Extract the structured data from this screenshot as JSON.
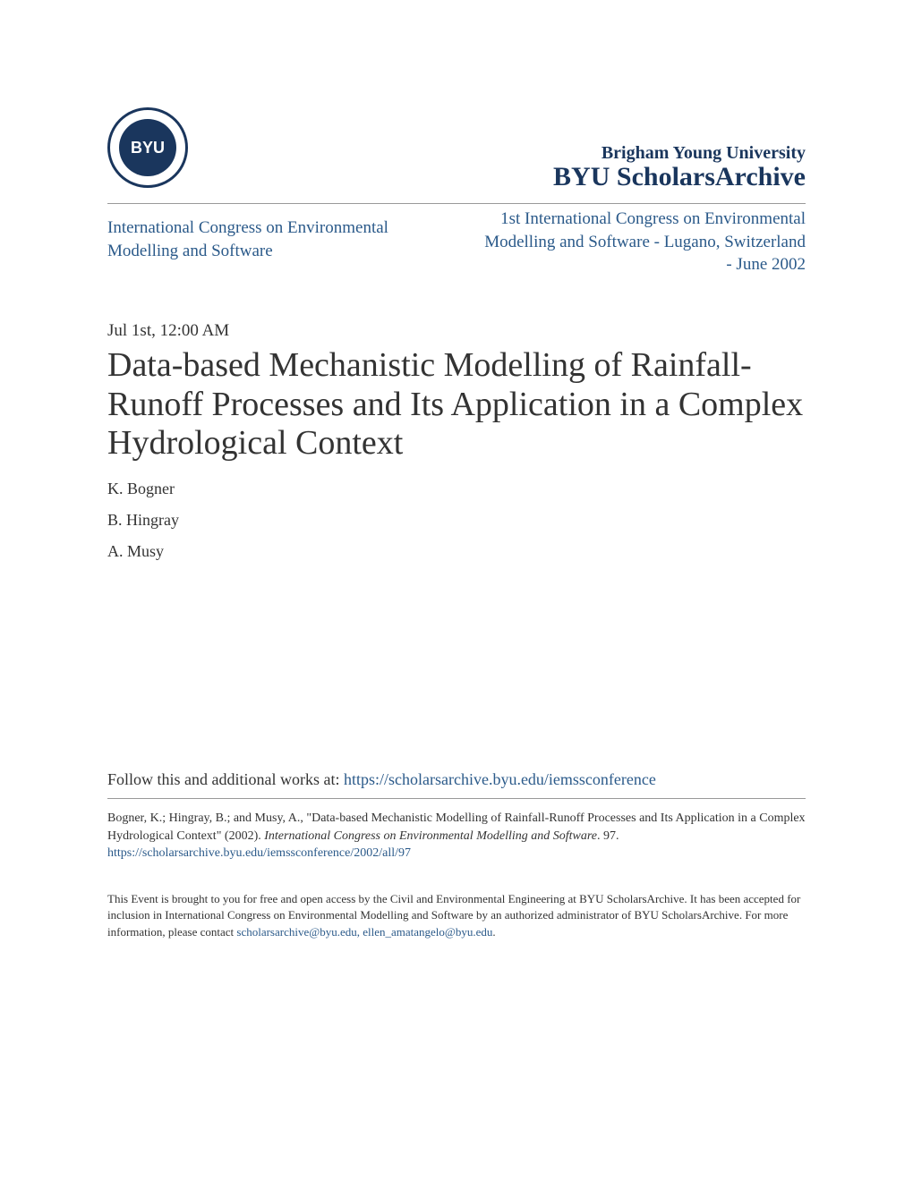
{
  "header": {
    "logo_text": "BYU",
    "institution": "Brigham Young University",
    "archive": "BYU ScholarsArchive"
  },
  "subheader": {
    "left": "International Congress on Environmental Modelling and Software",
    "right": "1st International Congress on Environmental Modelling and Software - Lugano, Switzerland - June 2002"
  },
  "timestamp": "Jul 1st, 12:00 AM",
  "title": "Data-based Mechanistic Modelling of Rainfall-Runoff Processes and Its Application in a Complex Hydrological Context",
  "authors": [
    "K. Bogner",
    "B. Hingray",
    "A. Musy"
  ],
  "follow": {
    "prefix": "Follow this and additional works at: ",
    "link": "https://scholarsarchive.byu.edu/iemssconference"
  },
  "citation": {
    "line1_a": "Bogner, K.; Hingray, B.; and Musy, A., \"Data-based Mechanistic Modelling of Rainfall-Runoff Processes and Its Application in a Complex Hydrological Context\" (2002). ",
    "line1_b": "International Congress on Environmental Modelling and Software",
    "line1_c": ". 97.",
    "link": "https://scholarsarchive.byu.edu/iemssconference/2002/all/97"
  },
  "access": {
    "text_a": "This Event is brought to you for free and open access by the Civil and Environmental Engineering at BYU ScholarsArchive. It has been accepted for inclusion in International Congress on Environmental Modelling and Software by an authorized administrator of BYU ScholarsArchive. For more information, please contact ",
    "emails": "scholarsarchive@byu.edu, ellen_amatangelo@byu.edu",
    "text_b": "."
  },
  "colors": {
    "link": "#2b5a8a",
    "heading": "#1a365d",
    "text": "#333333",
    "divider": "#999999",
    "background": "#ffffff"
  }
}
